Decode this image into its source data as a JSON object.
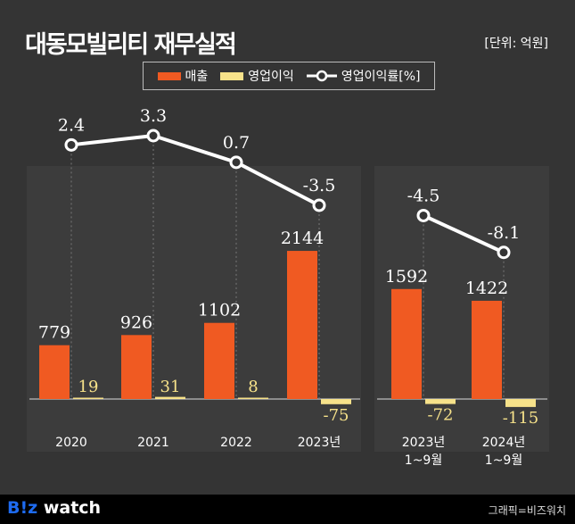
{
  "title": "대동모빌리티 재무실적",
  "unit": "[단위: 억원]",
  "footer": {
    "logo_b": "B!z",
    "logo_w": " watch",
    "credit": "그래픽=비즈워치"
  },
  "colors": {
    "revenue": "#f05a22",
    "op_profit": "#f7e28a",
    "margin_line": "#ffffff",
    "background": "#343434"
  },
  "chart_data": {
    "type": "bar",
    "title": "대동모빌리티 재무실적",
    "categories": [
      "2020",
      "2021",
      "2022",
      "2023년",
      "2023년\n1~9월",
      "2024년\n1~9월"
    ],
    "series": [
      {
        "name": "매출",
        "type": "bar",
        "values": [
          779,
          926,
          1102,
          2144,
          1592,
          1422
        ],
        "labels": [
          "779",
          "926",
          "1102",
          "2144",
          "1592",
          "1422"
        ]
      },
      {
        "name": "영업이익",
        "type": "bar",
        "values": [
          19,
          31,
          8,
          -75,
          -72,
          -115
        ],
        "labels": [
          "19",
          "31",
          "8",
          "-75",
          "-72",
          "-115"
        ]
      },
      {
        "name": "영업이익률[%]",
        "type": "line",
        "values": [
          2.4,
          3.3,
          0.7,
          -3.5,
          -4.5,
          -8.1
        ],
        "labels": [
          "2.4",
          "3.3",
          "0.7",
          "-3.5",
          "-4.5",
          "-8.1"
        ]
      }
    ],
    "legend": "top-center",
    "grid": false
  }
}
